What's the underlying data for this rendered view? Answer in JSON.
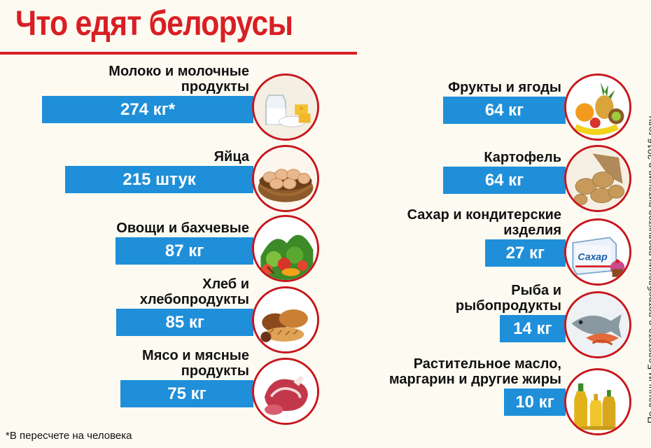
{
  "title": "Что едят белорусы",
  "footnote": "*В пересчете на человека",
  "source": "По данным Белстата о потреблении продуктов питания в 2016 году",
  "chart_data": {
    "type": "bar",
    "title": "Что едят белорусы",
    "unit_note": "*В пересчете на человека",
    "series": [
      {
        "values": [
          274,
          215,
          87,
          85,
          75,
          64,
          64,
          27,
          14,
          10
        ]
      }
    ],
    "categories": [
      "Молоко и молочные продукты",
      "Яйца",
      "Овощи и бахчевые",
      "Хлеб и хлебопродукты",
      "Мясо и мясные продукты",
      "Фрукты и ягоды",
      "Картофель",
      "Сахар и кондитерские изделия",
      "Рыба и рыбопродукты",
      "Растительное масло, маргарин и другие жиры"
    ],
    "items": [
      {
        "label_lines": [
          "Молоко и молочные",
          "продукты"
        ],
        "value": 274,
        "value_text": "274 кг*",
        "icon": "dairy-icon"
      },
      {
        "label_lines": [
          "Яйца"
        ],
        "value": 215,
        "value_text": "215 штук",
        "icon": "eggs-icon"
      },
      {
        "label_lines": [
          "Овощи и бахчевые"
        ],
        "value": 87,
        "value_text": "87 кг",
        "icon": "vegetables-icon"
      },
      {
        "label_lines": [
          "Хлеб и",
          "хлебопродукты"
        ],
        "value": 85,
        "value_text": "85 кг",
        "icon": "bread-icon"
      },
      {
        "label_lines": [
          "Мясо и мясные",
          "продукты"
        ],
        "value": 75,
        "value_text": "75 кг",
        "icon": "meat-icon"
      },
      {
        "label_lines": [
          "Фрукты и ягоды"
        ],
        "value": 64,
        "value_text": "64 кг",
        "icon": "fruits-icon"
      },
      {
        "label_lines": [
          "Картофель"
        ],
        "value": 64,
        "value_text": "64 кг",
        "icon": "potatoes-icon"
      },
      {
        "label_lines": [
          "Сахар и кондитерские",
          "изделия"
        ],
        "value": 27,
        "value_text": "27 кг",
        "icon": "sugar-icon",
        "icon_text": "Сахар"
      },
      {
        "label_lines": [
          "Рыба и",
          "рыбопродукты"
        ],
        "value": 14,
        "value_text": "14 кг",
        "icon": "fish-icon"
      },
      {
        "label_lines": [
          "Растительное масло,",
          "маргарин и другие жиры"
        ],
        "value": 10,
        "value_text": "10 кг",
        "icon": "oil-icon"
      }
    ]
  },
  "colors": {
    "title": "#d81f25",
    "bar": "#1f8fd9",
    "ring": "#c7161d",
    "background": "#fdfbf1"
  }
}
